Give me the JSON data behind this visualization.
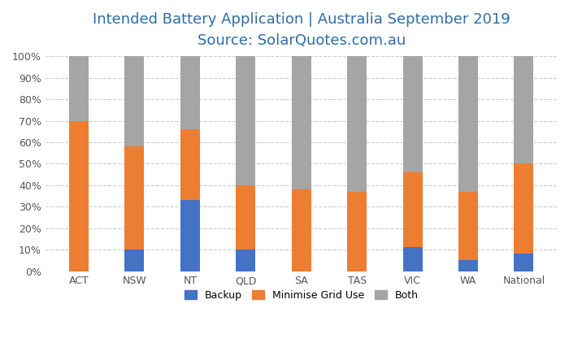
{
  "categories": [
    "ACT",
    "NSW",
    "NT",
    "QLD",
    "SA",
    "TAS",
    "VIC",
    "WA",
    "National"
  ],
  "backup": [
    0,
    10,
    33,
    10,
    0,
    0,
    11,
    5,
    8
  ],
  "minimise_grid": [
    70,
    48,
    33,
    30,
    38,
    37,
    35,
    32,
    42
  ],
  "both": [
    30,
    42,
    34,
    60,
    62,
    63,
    54,
    63,
    50
  ],
  "colors": {
    "backup": "#4472C4",
    "minimise_grid": "#ED7D31",
    "both": "#A5A5A5"
  },
  "title_line1": "Intended Battery Application | Australia September 2019",
  "title_line2": "Source: SolarQuotes.com.au",
  "title_color": "#2E6DA4",
  "legend_labels": [
    "Backup",
    "Minimise Grid Use",
    "Both"
  ],
  "ytick_labels": [
    "0%",
    "10%",
    "20%",
    "30%",
    "40%",
    "50%",
    "60%",
    "70%",
    "80%",
    "90%",
    "100%"
  ],
  "ylim": [
    0,
    100
  ],
  "background_color": "#FFFFFF",
  "grid_color": "#CCCCCC",
  "bar_width": 0.35,
  "title_fontsize": 13,
  "subtitle_fontsize": 12
}
